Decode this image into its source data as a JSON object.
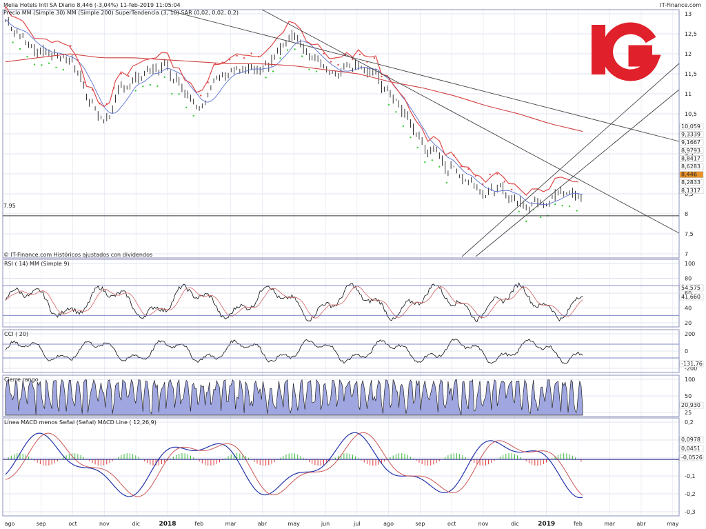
{
  "header": {
    "title": "Melia Hotels Intl SA   Diario   8,446 (-3,04%)   11-feb-2019 11:05:04",
    "source": "IT-Finance.com",
    "legend": "Precio  MM (Simple 30)  MM (Simple 200)  SuperTendencia (3, 10)  SAR (0,02, 0,02, 0,2)",
    "footnote": "© IT-Finance.com Históricos ajustados con dividendos",
    "level_label": "7,95"
  },
  "logo": {
    "text": "IG",
    "color": "#e0202a"
  },
  "colors": {
    "grid": "#dfe3ef",
    "bg": "#ffffff",
    "price": "#000000",
    "ma30": "#5a6fd0",
    "ma200": "#d04040",
    "st": "#e04848",
    "sar": "#33cc33",
    "rsi": "#222222",
    "rsi_sig": "#d06060",
    "fill": "#9fa6e0",
    "macd_pos": "#33bb33",
    "macd_neg": "#dd3333"
  },
  "x_axis": {
    "labels": [
      "ago",
      "sep",
      "oct",
      "nov",
      "dic",
      "2018",
      "feb",
      "mar",
      "abr",
      "may",
      "jun",
      "jul",
      "ago",
      "sep",
      "oct",
      "nov",
      "dic",
      "2019",
      "feb",
      "mar",
      "abr",
      "may"
    ]
  },
  "panels": [
    {
      "id": "price",
      "label": "",
      "ticks": [
        "13",
        "12,5",
        "12",
        "11,5",
        "11",
        "10,5",
        "10",
        "9,5",
        "9",
        "8,5",
        "8",
        "7,5",
        "7"
      ],
      "ymin": 7,
      "ymax": 13,
      "badges": [
        {
          "v": "10,059",
          "bg": "#ffffff",
          "fg": "#cc2222"
        },
        {
          "v": "9,3339",
          "bg": "#ffffff",
          "fg": "#cc2222"
        },
        {
          "v": "9,1667",
          "bg": "#ffffff",
          "fg": "#cc2222"
        },
        {
          "v": "8,9793",
          "bg": "#ffffff",
          "fg": "#cc2222"
        },
        {
          "v": "8,8417",
          "bg": "#ffffff",
          "fg": "#cc2222"
        },
        {
          "v": "8,6283",
          "bg": "#ffffff",
          "fg": "#222"
        },
        {
          "v": "8,446",
          "bg": "#e8922a",
          "fg": "#fff"
        },
        {
          "v": "8,2833",
          "bg": "#ffffff",
          "fg": "#228822"
        },
        {
          "v": "8,1317",
          "bg": "#ffffff",
          "fg": "#222"
        }
      ]
    },
    {
      "id": "rsi",
      "label": "RSI ( 14)  MM (Simple 9)",
      "ticks": [
        "100",
        "80",
        "60",
        "40",
        "20"
      ],
      "ymin": 0,
      "ymax": 100,
      "badges": [
        {
          "v": "54,575",
          "bg": "#fff",
          "fg": "#cc4444"
        },
        {
          "v": "41,660",
          "bg": "#fff",
          "fg": "#222"
        }
      ]
    },
    {
      "id": "cci",
      "label": "CCI ( 20)",
      "ticks": [
        "200",
        "0",
        "-200"
      ],
      "ymin": -300,
      "ymax": 300,
      "badges": [
        {
          "v": "-131,76",
          "bg": "#fff",
          "fg": "#222"
        }
      ]
    },
    {
      "id": "range",
      "label": "Cierre rango",
      "ticks": [
        "100",
        "50",
        "25"
      ],
      "ymin": 0,
      "ymax": 100,
      "badges": [
        {
          "v": "20,930",
          "bg": "#fff",
          "fg": "#222"
        }
      ]
    },
    {
      "id": "macd",
      "label": "Línea MACD menos Señal (Señal)  MACD Line ( 12,26,9)",
      "ticks": [
        "0,2",
        "0,1",
        "0",
        "-0,1",
        "-0,2",
        "-0,3"
      ],
      "ymin": -0.35,
      "ymax": 0.25,
      "badges": [
        {
          "v": "0,0978",
          "bg": "#fff",
          "fg": "#cc4444"
        },
        {
          "v": "0,0451",
          "bg": "#fff",
          "fg": "#222"
        },
        {
          "v": "-0,0526",
          "bg": "#fff",
          "fg": "#cc4444"
        }
      ]
    }
  ],
  "chart_data": {
    "type": "line",
    "title": "Melia Hotels Intl SA Diario",
    "x": [
      "2017-08",
      "2017-09",
      "2017-10",
      "2017-11",
      "2017-12",
      "2018-01",
      "2018-02",
      "2018-03",
      "2018-04",
      "2018-05",
      "2018-06",
      "2018-07",
      "2018-08",
      "2018-09",
      "2018-10",
      "2018-11",
      "2018-12",
      "2019-01",
      "2019-02"
    ],
    "series": [
      {
        "name": "Precio",
        "values": [
          12.85,
          12.1,
          11.95,
          10.3,
          11.4,
          11.7,
          10.9,
          11.8,
          11.3,
          12.5,
          11.6,
          11.9,
          11.0,
          9.7,
          9.1,
          8.7,
          8.3,
          8.6,
          8.446
        ]
      },
      {
        "name": "MM (Simple 200)",
        "values": [
          11.8,
          11.9,
          12.0,
          11.9,
          11.9,
          11.85,
          11.8,
          11.75,
          11.75,
          11.7,
          11.6,
          11.5,
          11.3,
          11.15,
          10.95,
          10.7,
          10.5,
          10.25,
          10.059
        ]
      }
    ],
    "indicators": {
      "RSI (14)": 41.66,
      "CCI (20)": -131.76,
      "Cierre rango": 20.93,
      "MACD Line (12,26,9)": 0.0451
    },
    "ylim": [
      7,
      13
    ],
    "grid": true
  }
}
